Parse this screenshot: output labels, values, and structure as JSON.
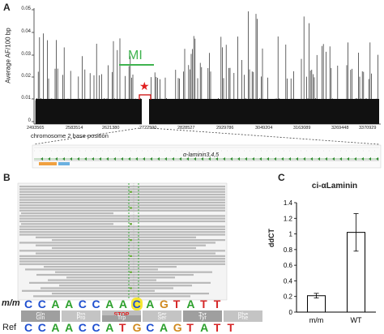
{
  "panelA": {
    "label": "A",
    "ylabel": "Average AF/100 bp",
    "yticks": [
      "0.05",
      "0.04",
      "0.03",
      "0.02",
      "0.01",
      "0"
    ],
    "xticks": [
      "2493565",
      "2583514",
      "2621380",
      "2722590",
      "2828527",
      "2929786",
      "3049204",
      "3163089",
      "3269448",
      "3370929"
    ],
    "xlabel": "chromosome 2 base position",
    "mi_label": "MI",
    "star": "★",
    "gene_label": "α-laminin3,4,5"
  },
  "panelB": {
    "label": "B",
    "mm_label": "m/m",
    "ref_label": "Ref",
    "mm_bases": [
      "C",
      "C",
      "A",
      "A",
      "C",
      "C",
      "A",
      "A",
      "C",
      "A",
      "G",
      "T",
      "A",
      "T",
      "T"
    ],
    "mm_aa": [
      "Gln",
      "Pro",
      "STOP",
      "Ser",
      "Tyr",
      "Phe"
    ],
    "ref_bases": [
      "C",
      "C",
      "A",
      "A",
      "C",
      "C",
      "A",
      "T",
      "G",
      "C",
      "A",
      "G",
      "T",
      "A",
      "T",
      "T"
    ],
    "ref_aa": [
      "Gln",
      "Pro",
      "Trp",
      "Ser",
      "Tyr",
      "Phe"
    ]
  },
  "panelC": {
    "label": "C"
  },
  "chart_data": {
    "type": "bar",
    "title": "ci-αLaminin",
    "categories": [
      "m/m",
      "WT"
    ],
    "values": [
      0.21,
      1.02
    ],
    "errors": [
      0.03,
      0.24
    ],
    "ylabel": "ddCT",
    "ylim": [
      0,
      1.4
    ],
    "yticks": [
      "0",
      "0.2",
      "0.4",
      "0.6",
      "0.8",
      "1",
      "1.2",
      "1.4"
    ],
    "grid": false,
    "colors": {
      "bar_fill": "#ffffff",
      "bar_stroke": "#000000"
    }
  }
}
